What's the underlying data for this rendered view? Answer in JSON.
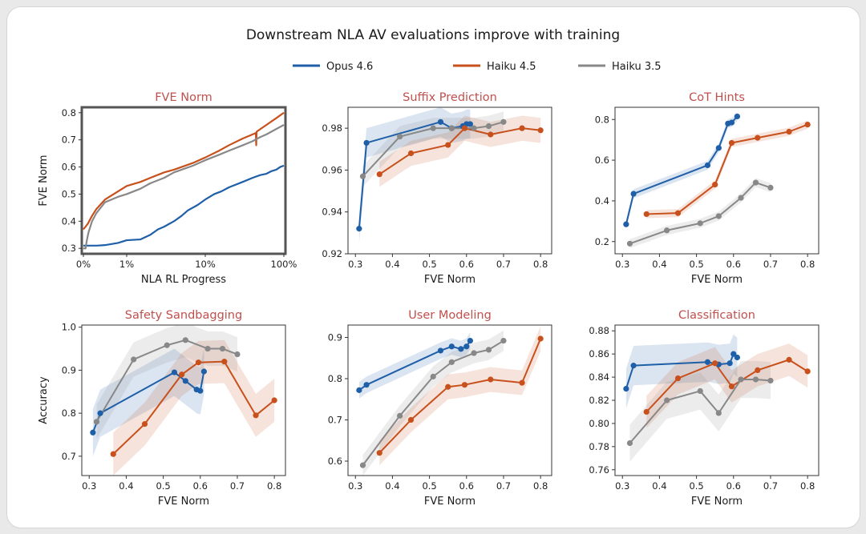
{
  "figure": {
    "title": "Downstream NLA AV evaluations improve with training",
    "colors": {
      "title_text": "#c0504d",
      "axis": "#222222",
      "frame_highlight": "#555555"
    }
  },
  "legend": [
    {
      "name": "Opus 4.6",
      "color": "#1f5fa8"
    },
    {
      "name": "Haiku 4.5",
      "color": "#c8501c"
    },
    {
      "name": "Haiku 3.5",
      "color": "#888888"
    }
  ],
  "chart_data": [
    {
      "type": "line",
      "title": "FVE Norm",
      "xlabel": "NLA RL Progress",
      "ylabel": "FVE Norm",
      "xscale": "log",
      "xlim": [
        0,
        100
      ],
      "ylim": [
        0.28,
        0.82
      ],
      "xticks": [
        0,
        1,
        10,
        100
      ],
      "xtick_labels": [
        "0%",
        "1%",
        "10%",
        "100%"
      ],
      "yticks": [
        0.3,
        0.4,
        0.5,
        0.6,
        0.7,
        0.8
      ],
      "ytick_labels": [
        "0.3",
        "0.4",
        "0.5",
        "0.6",
        "0.7",
        "0.8"
      ],
      "highlight_frame": true,
      "markers": false,
      "series": [
        {
          "name": "Opus 4.6",
          "points": [
            [
              0,
              0.31
            ],
            [
              0.1,
              0.31
            ],
            [
              0.2,
              0.31
            ],
            [
              0.3,
              0.31
            ],
            [
              0.5,
              0.312
            ],
            [
              0.8,
              0.32
            ],
            [
              1,
              0.33
            ],
            [
              1.5,
              0.333
            ],
            [
              2,
              0.35
            ],
            [
              2.5,
              0.37
            ],
            [
              3,
              0.38
            ],
            [
              4,
              0.4
            ],
            [
              5,
              0.42
            ],
            [
              6,
              0.44
            ],
            [
              8,
              0.46
            ],
            [
              10,
              0.48
            ],
            [
              13,
              0.5
            ],
            [
              16,
              0.51
            ],
            [
              20,
              0.525
            ],
            [
              30,
              0.545
            ],
            [
              40,
              0.56
            ],
            [
              50,
              0.57
            ],
            [
              60,
              0.575
            ],
            [
              70,
              0.585
            ],
            [
              80,
              0.59
            ],
            [
              90,
              0.6
            ],
            [
              100,
              0.605
            ]
          ]
        },
        {
          "name": "Haiku 4.5",
          "points": [
            [
              0,
              0.37
            ],
            [
              0.1,
              0.39
            ],
            [
              0.2,
              0.42
            ],
            [
              0.3,
              0.445
            ],
            [
              0.5,
              0.48
            ],
            [
              0.8,
              0.51
            ],
            [
              1,
              0.53
            ],
            [
              1.5,
              0.545
            ],
            [
              2,
              0.56
            ],
            [
              3,
              0.58
            ],
            [
              4,
              0.59
            ],
            [
              5,
              0.6
            ],
            [
              7,
              0.615
            ],
            [
              10,
              0.635
            ],
            [
              15,
              0.66
            ],
            [
              20,
              0.68
            ],
            [
              30,
              0.705
            ],
            [
              40,
              0.72
            ],
            [
              44,
              0.725
            ],
            [
              44.5,
              0.68
            ],
            [
              45,
              0.73
            ],
            [
              60,
              0.755
            ],
            [
              80,
              0.78
            ],
            [
              100,
              0.8
            ]
          ]
        },
        {
          "name": "Haiku 3.5",
          "points": [
            [
              0,
              0.3
            ],
            [
              0.05,
              0.3
            ],
            [
              0.08,
              0.33
            ],
            [
              0.12,
              0.36
            ],
            [
              0.2,
              0.4
            ],
            [
              0.3,
              0.43
            ],
            [
              0.5,
              0.47
            ],
            [
              0.8,
              0.49
            ],
            [
              1,
              0.5
            ],
            [
              1.5,
              0.52
            ],
            [
              2,
              0.54
            ],
            [
              3,
              0.56
            ],
            [
              4,
              0.58
            ],
            [
              5,
              0.59
            ],
            [
              7,
              0.605
            ],
            [
              10,
              0.625
            ],
            [
              15,
              0.645
            ],
            [
              20,
              0.66
            ],
            [
              30,
              0.68
            ],
            [
              40,
              0.695
            ],
            [
              50,
              0.71
            ],
            [
              60,
              0.72
            ],
            [
              80,
              0.74
            ],
            [
              100,
              0.755
            ]
          ]
        }
      ]
    },
    {
      "type": "line",
      "title": "Suffix Prediction",
      "xlabel": "FVE Norm",
      "ylabel": "",
      "xlim": [
        0.28,
        0.83
      ],
      "ylim": [
        0.92,
        0.99
      ],
      "xticks": [
        0.3,
        0.4,
        0.5,
        0.6,
        0.7,
        0.8
      ],
      "xtick_labels": [
        "0.3",
        "0.4",
        "0.5",
        "0.6",
        "0.7",
        "0.8"
      ],
      "yticks": [
        0.92,
        0.94,
        0.96,
        0.98
      ],
      "ytick_labels": [
        "0.92",
        "0.94",
        "0.96",
        "0.98"
      ],
      "markers": true,
      "series": [
        {
          "name": "Opus 4.6",
          "points": [
            [
              0.31,
              0.932
            ],
            [
              0.33,
              0.973
            ],
            [
              0.53,
              0.983
            ],
            [
              0.56,
              0.98
            ],
            [
              0.59,
              0.981
            ],
            [
              0.6,
              0.982
            ],
            [
              0.61,
              0.982
            ]
          ],
          "band": 0.007
        },
        {
          "name": "Haiku 4.5",
          "points": [
            [
              0.365,
              0.958
            ],
            [
              0.45,
              0.968
            ],
            [
              0.55,
              0.972
            ],
            [
              0.595,
              0.98
            ],
            [
              0.665,
              0.977
            ],
            [
              0.75,
              0.98
            ],
            [
              0.8,
              0.979
            ]
          ],
          "band": 0.006
        },
        {
          "name": "Haiku 3.5",
          "points": [
            [
              0.32,
              0.957
            ],
            [
              0.42,
              0.976
            ],
            [
              0.51,
              0.98
            ],
            [
              0.56,
              0.98
            ],
            [
              0.62,
              0.98
            ],
            [
              0.66,
              0.981
            ],
            [
              0.7,
              0.983
            ]
          ],
          "band": 0.005
        }
      ]
    },
    {
      "type": "line",
      "title": "CoT Hints",
      "xlabel": "FVE Norm",
      "ylabel": "",
      "xlim": [
        0.28,
        0.83
      ],
      "ylim": [
        0.14,
        0.86
      ],
      "xticks": [
        0.3,
        0.4,
        0.5,
        0.6,
        0.7,
        0.8
      ],
      "xtick_labels": [
        "0.3",
        "0.4",
        "0.5",
        "0.6",
        "0.7",
        "0.8"
      ],
      "yticks": [
        0.2,
        0.4,
        0.6,
        0.8
      ],
      "ytick_labels": [
        "0.2",
        "0.4",
        "0.6",
        "0.8"
      ],
      "markers": true,
      "series": [
        {
          "name": "Opus 4.6",
          "points": [
            [
              0.31,
              0.285
            ],
            [
              0.33,
              0.435
            ],
            [
              0.53,
              0.575
            ],
            [
              0.56,
              0.66
            ],
            [
              0.585,
              0.78
            ],
            [
              0.595,
              0.785
            ],
            [
              0.61,
              0.815
            ]
          ],
          "band": 0.022
        },
        {
          "name": "Haiku 4.5",
          "points": [
            [
              0.365,
              0.335
            ],
            [
              0.45,
              0.34
            ],
            [
              0.55,
              0.48
            ],
            [
              0.595,
              0.685
            ],
            [
              0.665,
              0.71
            ],
            [
              0.75,
              0.74
            ],
            [
              0.8,
              0.775
            ]
          ],
          "band": 0.02
        },
        {
          "name": "Haiku 3.5",
          "points": [
            [
              0.32,
              0.19
            ],
            [
              0.42,
              0.255
            ],
            [
              0.51,
              0.29
            ],
            [
              0.56,
              0.325
            ],
            [
              0.62,
              0.415
            ],
            [
              0.66,
              0.49
            ],
            [
              0.7,
              0.465
            ]
          ],
          "band": 0.022
        }
      ]
    },
    {
      "type": "line",
      "title": "Safety Sandbagging",
      "xlabel": "FVE Norm",
      "ylabel": "Accuracy",
      "xlim": [
        0.28,
        0.83
      ],
      "ylim": [
        0.655,
        1.005
      ],
      "xticks": [
        0.3,
        0.4,
        0.5,
        0.6,
        0.7,
        0.8
      ],
      "xtick_labels": [
        "0.3",
        "0.4",
        "0.5",
        "0.6",
        "0.7",
        "0.8"
      ],
      "yticks": [
        0.7,
        0.8,
        0.9,
        1.0
      ],
      "ytick_labels": [
        "0.7",
        "0.8",
        "0.9",
        "1.0"
      ],
      "markers": true,
      "series": [
        {
          "name": "Opus 4.6",
          "points": [
            [
              0.31,
              0.755
            ],
            [
              0.33,
              0.8
            ],
            [
              0.53,
              0.895
            ],
            [
              0.56,
              0.875
            ],
            [
              0.59,
              0.855
            ],
            [
              0.6,
              0.852
            ],
            [
              0.61,
              0.897
            ]
          ],
          "band": 0.055
        },
        {
          "name": "Haiku 4.5",
          "points": [
            [
              0.365,
              0.705
            ],
            [
              0.45,
              0.775
            ],
            [
              0.55,
              0.89
            ],
            [
              0.595,
              0.918
            ],
            [
              0.665,
              0.92
            ],
            [
              0.75,
              0.795
            ],
            [
              0.8,
              0.83
            ]
          ],
          "band": 0.05
        },
        {
          "name": "Haiku 3.5",
          "points": [
            [
              0.32,
              0.78
            ],
            [
              0.42,
              0.925
            ],
            [
              0.51,
              0.958
            ],
            [
              0.56,
              0.97
            ],
            [
              0.62,
              0.95
            ],
            [
              0.66,
              0.95
            ],
            [
              0.7,
              0.937
            ]
          ],
          "band": 0.04
        }
      ]
    },
    {
      "type": "line",
      "title": "User Modeling",
      "xlabel": "FVE Norm",
      "ylabel": "",
      "xlim": [
        0.28,
        0.83
      ],
      "ylim": [
        0.565,
        0.93
      ],
      "xticks": [
        0.3,
        0.4,
        0.5,
        0.6,
        0.7,
        0.8
      ],
      "xtick_labels": [
        "0.3",
        "0.4",
        "0.5",
        "0.6",
        "0.7",
        "0.8"
      ],
      "yticks": [
        0.6,
        0.7,
        0.8,
        0.9
      ],
      "ytick_labels": [
        "0.6",
        "0.7",
        "0.8",
        "0.9"
      ],
      "markers": true,
      "series": [
        {
          "name": "Opus 4.6",
          "points": [
            [
              0.31,
              0.772
            ],
            [
              0.33,
              0.785
            ],
            [
              0.53,
              0.868
            ],
            [
              0.56,
              0.878
            ],
            [
              0.585,
              0.872
            ],
            [
              0.6,
              0.878
            ],
            [
              0.61,
              0.892
            ]
          ],
          "band": 0.02
        },
        {
          "name": "Haiku 4.5",
          "points": [
            [
              0.365,
              0.62
            ],
            [
              0.45,
              0.7
            ],
            [
              0.55,
              0.78
            ],
            [
              0.595,
              0.785
            ],
            [
              0.665,
              0.798
            ],
            [
              0.75,
              0.79
            ],
            [
              0.8,
              0.897
            ]
          ],
          "band": 0.03
        },
        {
          "name": "Haiku 3.5",
          "points": [
            [
              0.32,
              0.59
            ],
            [
              0.42,
              0.71
            ],
            [
              0.51,
              0.805
            ],
            [
              0.56,
              0.84
            ],
            [
              0.62,
              0.862
            ],
            [
              0.66,
              0.87
            ],
            [
              0.7,
              0.892
            ]
          ],
          "band": 0.025
        }
      ]
    },
    {
      "type": "line",
      "title": "Classification",
      "xlabel": "FVE Norm",
      "ylabel": "",
      "xlim": [
        0.28,
        0.83
      ],
      "ylim": [
        0.755,
        0.885
      ],
      "xticks": [
        0.3,
        0.4,
        0.5,
        0.6,
        0.7,
        0.8
      ],
      "xtick_labels": [
        "0.3",
        "0.4",
        "0.5",
        "0.6",
        "0.7",
        "0.8"
      ],
      "yticks": [
        0.76,
        0.78,
        0.8,
        0.82,
        0.84,
        0.86,
        0.88
      ],
      "ytick_labels": [
        "0.76",
        "0.78",
        "0.80",
        "0.82",
        "0.84",
        "0.86",
        "0.88"
      ],
      "markers": true,
      "series": [
        {
          "name": "Opus 4.6",
          "points": [
            [
              0.31,
              0.83
            ],
            [
              0.33,
              0.85
            ],
            [
              0.53,
              0.853
            ],
            [
              0.56,
              0.851
            ],
            [
              0.59,
              0.852
            ],
            [
              0.6,
              0.86
            ],
            [
              0.61,
              0.857
            ]
          ],
          "band": 0.017
        },
        {
          "name": "Haiku 4.5",
          "points": [
            [
              0.365,
              0.81
            ],
            [
              0.45,
              0.839
            ],
            [
              0.55,
              0.852
            ],
            [
              0.595,
              0.832
            ],
            [
              0.665,
              0.846
            ],
            [
              0.75,
              0.855
            ],
            [
              0.8,
              0.845
            ]
          ],
          "band": 0.014
        },
        {
          "name": "Haiku 3.5",
          "points": [
            [
              0.32,
              0.783
            ],
            [
              0.42,
              0.82
            ],
            [
              0.51,
              0.828
            ],
            [
              0.56,
              0.809
            ],
            [
              0.62,
              0.838
            ],
            [
              0.66,
              0.838
            ],
            [
              0.7,
              0.837
            ]
          ],
          "band": 0.016
        }
      ]
    }
  ]
}
